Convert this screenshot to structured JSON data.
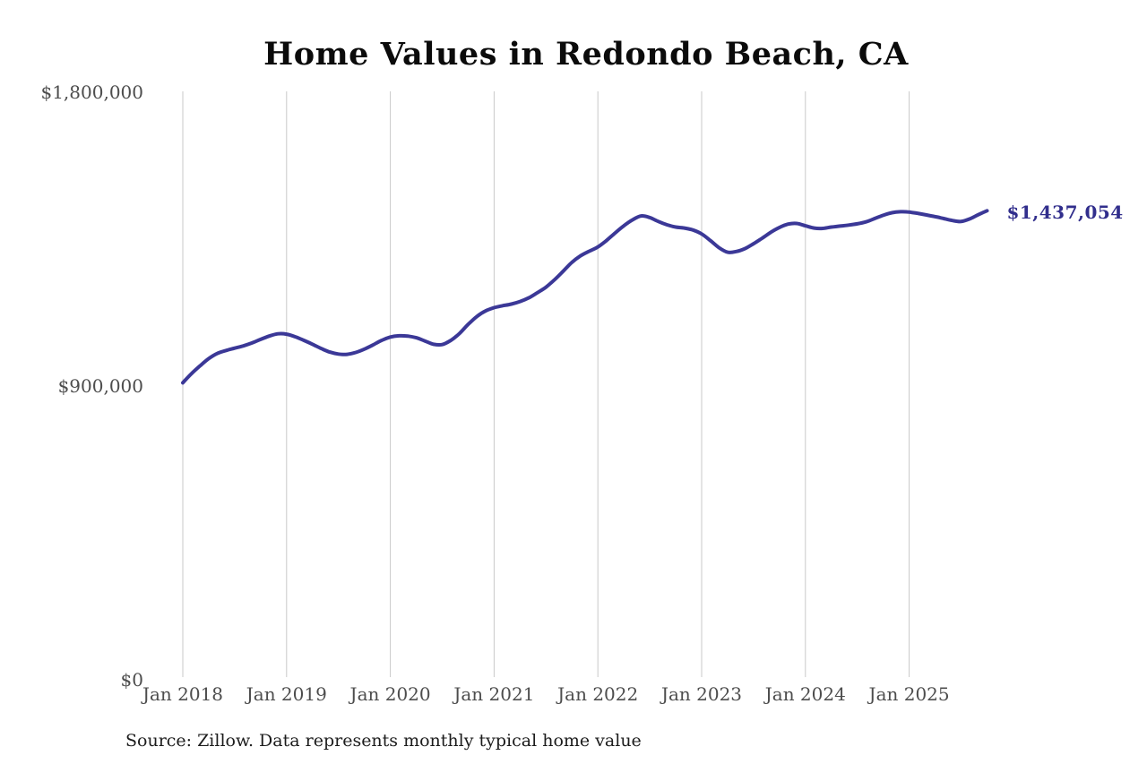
{
  "chart_data": {
    "type": "line",
    "title": "Home Values in Redondo Beach, CA",
    "source_note": "Source: Zillow. Data represents monthly typical home value",
    "series_name": "Monthly typical home value",
    "frequency": "monthly",
    "start_month": "Jan 2018",
    "end_month": "Oct 2025",
    "x_ticks": [
      "Jan 2018",
      "Jan 2019",
      "Jan 2020",
      "Jan 2021",
      "Jan 2022",
      "Jan 2023",
      "Jan 2024",
      "Jan 2025"
    ],
    "y_ticks": [
      {
        "label": "$0",
        "value": 0
      },
      {
        "label": "$900,000",
        "value": 900000
      },
      {
        "label": "$1,800,000",
        "value": 1800000
      }
    ],
    "ylim": [
      0,
      1800000
    ],
    "grid": "vertical-only",
    "legend": "none",
    "end_label": "$1,437,054",
    "last_value": 1437054,
    "line_color": "#3b3897",
    "end_label_color": "#312e8c",
    "grid_color": "#c9c9c9",
    "values": [
      910000,
      938000,
      962000,
      984000,
      1000000,
      1009000,
      1016000,
      1023000,
      1032000,
      1043000,
      1053000,
      1060000,
      1059000,
      1051000,
      1040000,
      1028000,
      1015000,
      1004000,
      998000,
      997000,
      1003000,
      1013000,
      1026000,
      1040000,
      1050000,
      1054000,
      1053000,
      1048000,
      1038000,
      1028000,
      1027000,
      1040000,
      1061000,
      1089000,
      1113000,
      1130000,
      1140000,
      1146000,
      1151000,
      1159000,
      1170000,
      1186000,
      1203000,
      1226000,
      1252000,
      1279000,
      1299000,
      1313000,
      1326000,
      1346000,
      1369000,
      1391000,
      1409000,
      1421000,
      1416000,
      1404000,
      1394000,
      1387000,
      1384000,
      1378000,
      1366000,
      1346000,
      1324000,
      1310000,
      1312000,
      1321000,
      1336000,
      1353000,
      1371000,
      1386000,
      1396000,
      1398000,
      1391000,
      1384000,
      1383000,
      1387000,
      1390000,
      1393000,
      1397000,
      1403000,
      1413000,
      1423000,
      1431000,
      1434000,
      1433000,
      1429000,
      1424000,
      1419000,
      1413000,
      1407000,
      1404000,
      1412000,
      1425000,
      1437054
    ]
  }
}
